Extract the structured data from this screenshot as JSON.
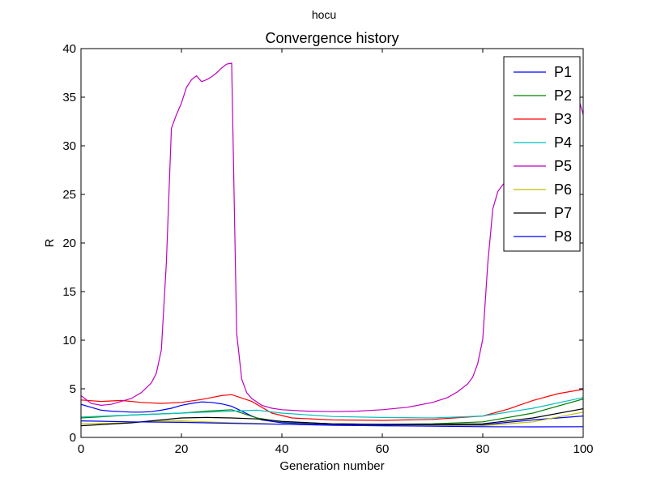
{
  "chart_data": {
    "type": "line",
    "suptitle": "hocu",
    "title": "Convergence history",
    "xlabel": "Generation number",
    "ylabel": "R",
    "xlim": [
      0,
      100
    ],
    "ylim": [
      0,
      40
    ],
    "xticks": [
      0,
      20,
      40,
      60,
      80,
      100
    ],
    "yticks": [
      0,
      5,
      10,
      15,
      20,
      25,
      30,
      35,
      40
    ],
    "xtick_labels": [
      "0",
      "20",
      "40",
      "60",
      "80",
      "100"
    ],
    "ytick_labels": [
      "0",
      "5",
      "10",
      "15",
      "20",
      "25",
      "30",
      "35",
      "40"
    ],
    "grid": false,
    "legend": {
      "position": "top-right"
    },
    "series": [
      {
        "name": "P1",
        "color": "#0000ff",
        "x": [
          0,
          2,
          4,
          6,
          8,
          10,
          12,
          14,
          16,
          18,
          20,
          22,
          24,
          26,
          28,
          30,
          32,
          34,
          36,
          40,
          50,
          60,
          70,
          80,
          90,
          100
        ],
        "y": [
          3.4,
          3.1,
          2.8,
          2.7,
          2.65,
          2.6,
          2.6,
          2.65,
          2.8,
          3.0,
          3.3,
          3.5,
          3.65,
          3.6,
          3.45,
          3.2,
          2.7,
          2.2,
          1.8,
          1.5,
          1.3,
          1.25,
          1.25,
          1.3,
          1.8,
          2.2
        ]
      },
      {
        "name": "P2",
        "color": "#008000",
        "x": [
          0,
          10,
          20,
          25,
          30,
          35,
          40,
          50,
          60,
          70,
          80,
          90,
          100
        ],
        "y": [
          2.0,
          2.3,
          2.5,
          2.7,
          2.85,
          2.0,
          1.6,
          1.4,
          1.35,
          1.4,
          1.6,
          2.5,
          3.95
        ]
      },
      {
        "name": "P3",
        "color": "#ff0000",
        "x": [
          0,
          4,
          8,
          12,
          16,
          20,
          24,
          28,
          30,
          34,
          38,
          42,
          50,
          60,
          70,
          80,
          85,
          90,
          95,
          100
        ],
        "y": [
          3.85,
          3.7,
          3.8,
          3.6,
          3.5,
          3.6,
          3.9,
          4.3,
          4.4,
          3.7,
          2.5,
          2.0,
          1.8,
          1.75,
          1.85,
          2.2,
          2.9,
          3.8,
          4.5,
          4.95
        ]
      },
      {
        "name": "P4",
        "color": "#00bfbf",
        "x": [
          0,
          10,
          20,
          30,
          35,
          40,
          50,
          60,
          70,
          80,
          90,
          100
        ],
        "y": [
          2.1,
          2.3,
          2.5,
          2.7,
          2.8,
          2.5,
          2.15,
          2.05,
          2.0,
          2.2,
          3.0,
          4.1
        ]
      },
      {
        "name": "P5",
        "color": "#bf00bf",
        "x": [
          0,
          2,
          4,
          6,
          8,
          10,
          12,
          14,
          15,
          16,
          17,
          18,
          19,
          20,
          21,
          22,
          23,
          24,
          25,
          26,
          27,
          28,
          29,
          30,
          31,
          32,
          33,
          34,
          36,
          38,
          40,
          45,
          50,
          55,
          60,
          65,
          70,
          73,
          75,
          77,
          78,
          79,
          80,
          81,
          82,
          83,
          84,
          85,
          86,
          87,
          88,
          89,
          90,
          91,
          92,
          93,
          94,
          95,
          96,
          97,
          98,
          99,
          100
        ],
        "y": [
          4.3,
          3.5,
          3.3,
          3.4,
          3.7,
          4.0,
          4.6,
          5.6,
          6.6,
          9.0,
          18.0,
          31.8,
          33.2,
          34.4,
          36.0,
          36.8,
          37.2,
          36.6,
          36.8,
          37.1,
          37.5,
          38.0,
          38.4,
          38.5,
          10.7,
          6.0,
          4.6,
          4.0,
          3.3,
          3.0,
          2.85,
          2.7,
          2.65,
          2.7,
          2.85,
          3.1,
          3.6,
          4.1,
          4.7,
          5.5,
          6.2,
          7.6,
          10.1,
          17.9,
          23.5,
          25.3,
          26.0,
          26.5,
          27.0,
          27.5,
          28.0,
          28.5,
          29.0,
          29.5,
          30.0,
          30.5,
          31.0,
          31.5,
          32.5,
          33.5,
          34.5,
          35.0,
          33.2
        ]
      },
      {
        "name": "P6",
        "color": "#bfbf00",
        "x": [
          0,
          10,
          15,
          20,
          25,
          30,
          35,
          40,
          50,
          60,
          70,
          80,
          90,
          100
        ],
        "y": [
          1.4,
          1.5,
          1.7,
          1.7,
          1.6,
          1.5,
          1.45,
          1.35,
          1.25,
          1.2,
          1.2,
          1.2,
          1.6,
          2.6
        ]
      },
      {
        "name": "P7",
        "color": "#000000",
        "x": [
          0,
          10,
          15,
          20,
          25,
          30,
          35,
          40,
          50,
          60,
          70,
          80,
          90,
          100
        ],
        "y": [
          1.2,
          1.5,
          1.75,
          2.0,
          2.05,
          2.0,
          1.9,
          1.65,
          1.4,
          1.35,
          1.35,
          1.4,
          2.0,
          2.95
        ]
      },
      {
        "name": "P8",
        "color": "#0000ff",
        "x": [
          0,
          10,
          20,
          30,
          40,
          50,
          60,
          70,
          80,
          90,
          100
        ],
        "y": [
          1.7,
          1.6,
          1.55,
          1.45,
          1.35,
          1.25,
          1.2,
          1.15,
          1.1,
          1.08,
          1.1
        ]
      }
    ]
  }
}
